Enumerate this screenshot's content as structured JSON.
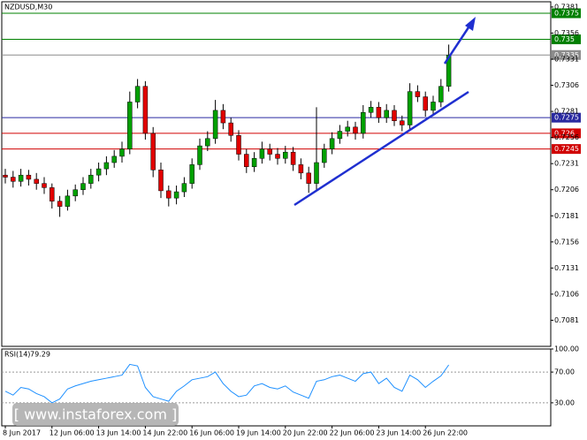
{
  "chart_data": {
    "type": "candlestick",
    "title": "NZDUSD,M30",
    "categories": [
      "8 Jun 2017",
      null,
      null,
      null,
      null,
      null,
      "12 Jun 06:00",
      null,
      null,
      null,
      null,
      null,
      "13 Jun 14:00",
      null,
      null,
      null,
      null,
      null,
      "14 Jun 22:00",
      null,
      null,
      null,
      null,
      null,
      "16 Jun 06:00",
      null,
      null,
      null,
      null,
      null,
      "19 Jun 14:00",
      null,
      null,
      null,
      null,
      null,
      "20 Jun 22:00",
      null,
      null,
      null,
      null,
      null,
      "22 Jun 06:00",
      null,
      null,
      null,
      null,
      null,
      "23 Jun 14:00",
      null,
      null,
      null,
      null,
      null,
      "26 Jun 22:00",
      null,
      null,
      null
    ],
    "open": [
      0.722,
      0.7218,
      0.7214,
      0.722,
      0.7216,
      0.7212,
      0.7208,
      0.7195,
      0.719,
      0.72,
      0.7206,
      0.7212,
      0.722,
      0.7226,
      0.7232,
      0.7238,
      0.7245,
      0.729,
      0.7305,
      0.726,
      0.7225,
      0.7205,
      0.7198,
      0.7204,
      0.7212,
      0.723,
      0.7248,
      0.7255,
      0.7282,
      0.727,
      0.7258,
      0.724,
      0.7228,
      0.7236,
      0.7245,
      0.724,
      0.7236,
      0.7242,
      0.723,
      0.7222,
      0.7212,
      0.7232,
      0.7245,
      0.7255,
      0.7262,
      0.7266,
      0.726,
      0.728,
      0.7285,
      0.7275,
      0.7282,
      0.7272,
      0.7268,
      0.73,
      0.7295,
      0.7282,
      0.729,
      0.7305
    ],
    "high": [
      0.7226,
      0.7224,
      0.7226,
      0.7225,
      0.7222,
      0.7218,
      0.7212,
      0.72,
      0.7206,
      0.7211,
      0.7218,
      0.7226,
      0.7232,
      0.7238,
      0.7244,
      0.7252,
      0.73,
      0.7312,
      0.731,
      0.7266,
      0.7232,
      0.721,
      0.721,
      0.7218,
      0.7236,
      0.7255,
      0.7262,
      0.7292,
      0.7288,
      0.7275,
      0.7263,
      0.7245,
      0.7242,
      0.7252,
      0.725,
      0.7246,
      0.7248,
      0.7247,
      0.7236,
      0.7228,
      0.7285,
      0.725,
      0.7261,
      0.7268,
      0.7272,
      0.7271,
      0.7287,
      0.7291,
      0.729,
      0.7288,
      0.7287,
      0.7277,
      0.7308,
      0.7306,
      0.73,
      0.7296,
      0.7312,
      0.7345
    ],
    "low": [
      0.7212,
      0.7208,
      0.7209,
      0.721,
      0.7206,
      0.7202,
      0.7188,
      0.718,
      0.7186,
      0.7195,
      0.7201,
      0.7207,
      0.7214,
      0.722,
      0.7227,
      0.7232,
      0.724,
      0.7284,
      0.7254,
      0.7218,
      0.7198,
      0.719,
      0.7192,
      0.7199,
      0.7207,
      0.7225,
      0.7243,
      0.725,
      0.7264,
      0.7252,
      0.7234,
      0.7222,
      0.7223,
      0.7231,
      0.7234,
      0.723,
      0.7231,
      0.7224,
      0.7216,
      0.7203,
      0.7206,
      0.7227,
      0.724,
      0.725,
      0.7257,
      0.7254,
      0.7255,
      0.7275,
      0.727,
      0.727,
      0.7267,
      0.7262,
      0.7263,
      0.729,
      0.7276,
      0.7277,
      0.7285,
      0.73
    ],
    "close": [
      0.7218,
      0.7214,
      0.722,
      0.7216,
      0.7212,
      0.7208,
      0.7195,
      0.719,
      0.72,
      0.7206,
      0.7212,
      0.722,
      0.7226,
      0.7232,
      0.7238,
      0.7245,
      0.729,
      0.7305,
      0.726,
      0.7225,
      0.7205,
      0.7198,
      0.7204,
      0.7212,
      0.723,
      0.7248,
      0.7255,
      0.7282,
      0.727,
      0.7258,
      0.724,
      0.7228,
      0.7236,
      0.7245,
      0.724,
      0.7236,
      0.7242,
      0.723,
      0.7222,
      0.7212,
      0.7232,
      0.7245,
      0.7255,
      0.7262,
      0.7266,
      0.726,
      0.728,
      0.7285,
      0.7275,
      0.7282,
      0.7272,
      0.7268,
      0.73,
      0.7295,
      0.7282,
      0.729,
      0.7305,
      0.7335
    ],
    "up_color": "#00a000",
    "down_color": "#e00000",
    "ylim": [
      0.7056,
      0.7386
    ],
    "yticks": [
      0.7381,
      0.7356,
      0.7331,
      0.7306,
      0.7281,
      0.7256,
      0.7231,
      0.7206,
      0.7181,
      0.7156,
      0.7131,
      0.7106,
      0.7081
    ],
    "levels": [
      {
        "value": 0.7375,
        "color": "#008000"
      },
      {
        "value": 0.735,
        "color": "#008000"
      },
      {
        "value": 0.7335,
        "color": "#8c8c8c"
      },
      {
        "value": 0.7275,
        "color": "#2a2aa0"
      },
      {
        "value": 0.726,
        "color": "#d00000"
      },
      {
        "value": 0.7245,
        "color": "#d00000"
      }
    ],
    "rsi": {
      "name": "RSI(14)",
      "color": "#1e90ff",
      "ylim": [
        0,
        100
      ],
      "yticks": [
        {
          "value": 100,
          "label": "100.00"
        },
        {
          "value": 70,
          "label": "70.00"
        },
        {
          "value": 30,
          "label": "30.00"
        }
      ],
      "values": [
        45,
        40,
        50,
        48,
        42,
        38,
        30,
        35,
        48,
        52,
        55,
        58,
        60,
        62,
        64,
        66,
        80,
        78,
        50,
        38,
        35,
        32,
        45,
        52,
        60,
        62,
        64,
        70,
        55,
        45,
        38,
        40,
        52,
        55,
        50,
        48,
        52,
        44,
        40,
        36,
        58,
        60,
        64,
        66,
        62,
        58,
        68,
        70,
        55,
        62,
        50,
        45,
        66,
        60,
        50,
        58,
        65,
        79.29
      ]
    },
    "watermark": "[ www.instaforex.com ]"
  }
}
